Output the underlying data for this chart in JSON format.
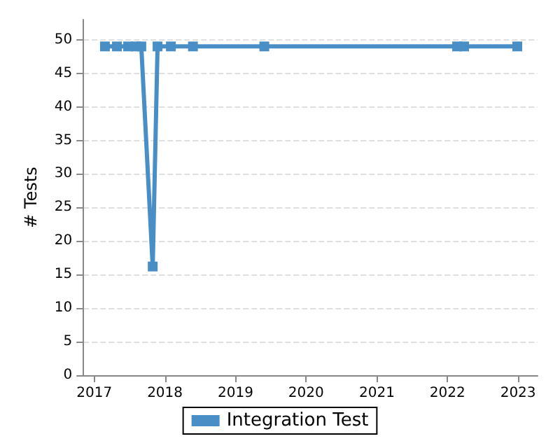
{
  "chart_data": {
    "type": "line",
    "ylabel": "# Tests",
    "x": [
      "2017-02-25",
      "2017-04-28",
      "2017-06-25",
      "2017-08-04",
      "2017-09-01",
      "2017-10-30",
      "2017-11-24",
      "2018-02-01",
      "2018-05-26",
      "2019-05-30",
      "2022-02-20",
      "2022-03-28",
      "2022-12-28"
    ],
    "series": [
      {
        "name": "Integration Test",
        "color": "#4a8ec6",
        "values": [
          49,
          49,
          49,
          49,
          49,
          16.2,
          49,
          49,
          49,
          49,
          49,
          49,
          49
        ]
      }
    ],
    "xlim": [
      "2016-11-06",
      "2023-04-12"
    ],
    "xticks": [
      "2017",
      "2018",
      "2019",
      "2020",
      "2021",
      "2022",
      "2023"
    ],
    "ylim": [
      0,
      53
    ],
    "yticks": [
      0,
      5,
      10,
      15,
      20,
      25,
      30,
      35,
      40,
      45,
      50
    ],
    "grid": "y",
    "legend": "bottom",
    "marker": "square",
    "line_style": "solid"
  }
}
